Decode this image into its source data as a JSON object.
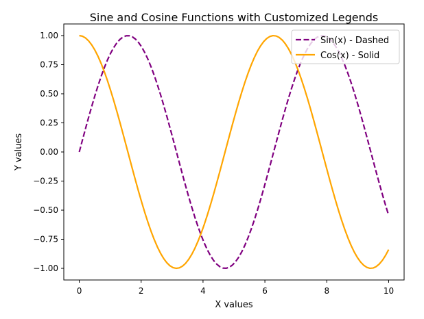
{
  "chart_data": {
    "type": "line",
    "title": "Sine and Cosine Functions with Customized Legends",
    "xlabel": "X values",
    "ylabel": "Y values",
    "xlim": [
      -0.5,
      10.5
    ],
    "ylim": [
      -1.1,
      1.1
    ],
    "xticks": [
      0,
      2,
      4,
      6,
      8,
      10
    ],
    "xtick_labels": [
      "0",
      "2",
      "4",
      "6",
      "8",
      "10"
    ],
    "yticks": [
      1.0,
      0.75,
      0.5,
      0.25,
      0.0,
      -0.25,
      -0.5,
      -0.75,
      -1.0
    ],
    "ytick_labels": [
      "1.00",
      "0.75",
      "0.50",
      "0.25",
      "0.00",
      "−0.25",
      "−0.50",
      "−0.75",
      "−1.00"
    ],
    "grid": false,
    "legend_position": "top-right",
    "x_range": [
      0,
      10
    ],
    "sample_count": 100,
    "series": [
      {
        "name": "Sin(x) - Dashed",
        "function": "sin",
        "color": "#800080",
        "linestyle": "dashed",
        "points": [
          [
            0,
            0.0
          ],
          [
            1,
            0.841
          ],
          [
            1.571,
            1.0
          ],
          [
            2,
            0.909
          ],
          [
            3,
            0.141
          ],
          [
            4,
            -0.757
          ],
          [
            4.712,
            -1.0
          ],
          [
            5,
            -0.959
          ],
          [
            6,
            -0.279
          ],
          [
            7,
            0.657
          ],
          [
            7.854,
            1.0
          ],
          [
            8,
            0.989
          ],
          [
            9,
            0.412
          ],
          [
            10,
            -0.544
          ]
        ]
      },
      {
        "name": "Cos(x) - Solid",
        "function": "cos",
        "color": "#FFA500",
        "linestyle": "solid",
        "points": [
          [
            0,
            1.0
          ],
          [
            1,
            0.54
          ],
          [
            2,
            -0.416
          ],
          [
            3,
            -0.99
          ],
          [
            3.142,
            -1.0
          ],
          [
            4,
            -0.654
          ],
          [
            5,
            0.284
          ],
          [
            6,
            0.96
          ],
          [
            6.283,
            1.0
          ],
          [
            7,
            0.754
          ],
          [
            8,
            -0.146
          ],
          [
            9,
            -0.911
          ],
          [
            9.425,
            -1.0
          ],
          [
            10,
            -0.839
          ]
        ]
      }
    ]
  }
}
